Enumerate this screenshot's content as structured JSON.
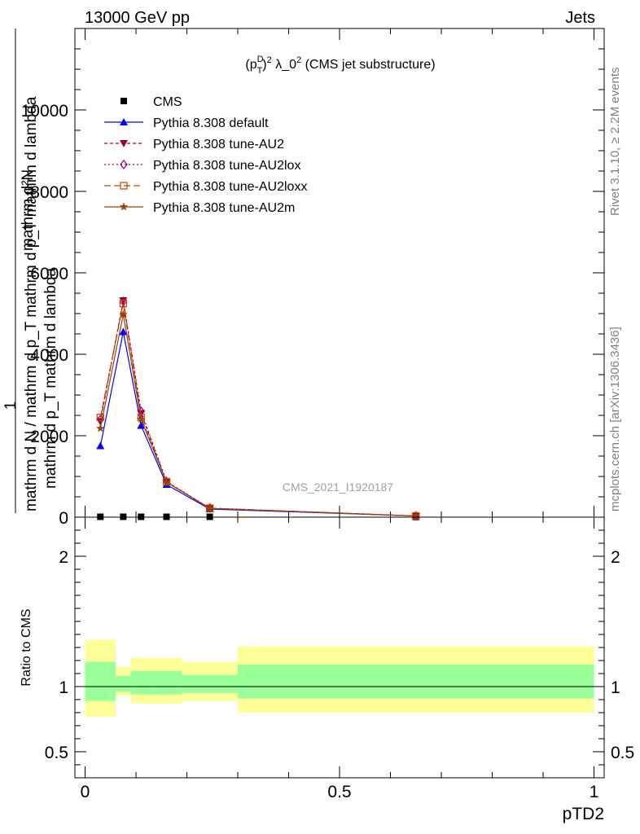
{
  "header": {
    "left": "13000 GeV pp",
    "right": "Jets"
  },
  "side": {
    "rivet": "Rivet 3.1.10, ≥ 2.2M events",
    "mcplots": "mcplots.cern.ch [arXiv:1306.3436]"
  },
  "chart_data": {
    "type": "line",
    "title": "(p_T^D)^2 λ_0^2 (CMS jet substructure)",
    "title_parts": {
      "open": "(p",
      "sup": "D",
      "sub": "T",
      "close": ")",
      "sup2": "2",
      "rest": " λ_0",
      "sup3": "2",
      "tail": " (CMS jet substructure)"
    },
    "watermark": "CMS_2021_I1920187",
    "xlabel": "pTD2",
    "ylabel_main": {
      "numer": "mathrm d²N",
      "one": "1",
      "denom": "mathrm d N / mathrm d p_T mathrm d p_T mathrm d lambda",
      "mid": "mathrm d p_T mathrm d lambda"
    },
    "ylabel_ratio": "Ratio to CMS",
    "xlim": [
      -0.02,
      1.02
    ],
    "ylim_main": [
      0,
      12000
    ],
    "ylim_ratio": [
      0.3,
      2.3
    ],
    "x_ticks": [
      0,
      0.5,
      1
    ],
    "x_tick_labels": [
      "0",
      "0.5",
      "1"
    ],
    "y_ticks_main": [
      0,
      2000,
      4000,
      6000,
      8000,
      10000
    ],
    "y_tick_labels_main": [
      "0",
      "2000",
      "4000",
      "6000",
      "8000",
      "10000"
    ],
    "y_ticks_ratio": [
      0.5,
      1,
      2
    ],
    "y_tick_labels_ratio": [
      "0.5",
      "1",
      "2"
    ],
    "x": [
      0.03,
      0.075,
      0.11,
      0.16,
      0.245,
      0.65
    ],
    "bin_edges": [
      0,
      0.06,
      0.09,
      0.135,
      0.19,
      0.3,
      1.0
    ],
    "legend_position": "top-left",
    "series": [
      {
        "name": "CMS",
        "color": "#000000",
        "marker": "square",
        "dash": "",
        "values": [
          10,
          10,
          10,
          10,
          10,
          5
        ]
      },
      {
        "name": "Pythia 8.308 default",
        "color": "#0000ff",
        "marker": "triangle-up",
        "dash": "",
        "values": [
          1750,
          4550,
          2250,
          800,
          200,
          30
        ]
      },
      {
        "name": "Pythia 8.308 tune-AU2",
        "color": "#990033",
        "marker": "triangle-down",
        "dash": "4,3",
        "values": [
          2350,
          5320,
          2550,
          860,
          220,
          30
        ]
      },
      {
        "name": "Pythia 8.308 tune-AU2lox",
        "color": "#990066",
        "marker": "diamond-open",
        "dash": "2,3",
        "values": [
          2400,
          5300,
          2600,
          880,
          225,
          30
        ]
      },
      {
        "name": "Pythia 8.308 tune-AU2loxx",
        "color": "#cc4400",
        "marker": "square-open",
        "dash": "8,4",
        "values": [
          2450,
          5250,
          2450,
          870,
          220,
          30
        ]
      },
      {
        "name": "Pythia 8.308 tune-AU2m",
        "color": "#994400",
        "marker": "star",
        "dash": "",
        "values": [
          2180,
          4980,
          2400,
          860,
          215,
          30
        ]
      }
    ],
    "ratio_bands": {
      "yellow": {
        "color": "#ffff99",
        "lo": [
          0.77,
          0.93,
          0.87,
          0.87,
          0.89,
          0.8
        ],
        "hi": [
          1.36,
          1.15,
          1.22,
          1.22,
          1.19,
          1.31
        ]
      },
      "green": {
        "color": "#99ff99",
        "lo": [
          0.89,
          0.96,
          0.94,
          0.94,
          0.95,
          0.91
        ],
        "hi": [
          1.19,
          1.08,
          1.12,
          1.12,
          1.09,
          1.17
        ]
      }
    }
  }
}
